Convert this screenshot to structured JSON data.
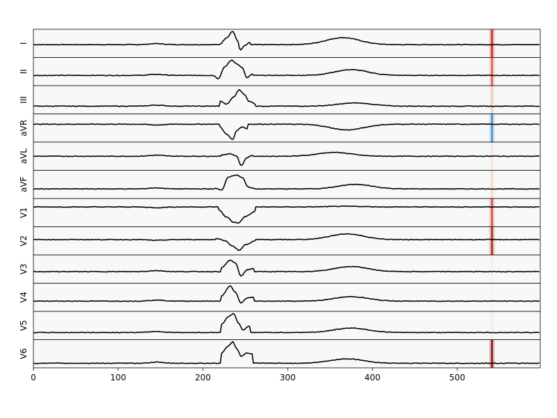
{
  "chart_data": {
    "type": "line",
    "xlim": [
      0,
      598
    ],
    "x_ticks": [
      "0",
      "100",
      "200",
      "300",
      "400",
      "500"
    ],
    "x_tick_values": [
      0,
      100,
      200,
      300,
      400,
      500
    ],
    "panel_background": "#f7f9f9",
    "line_color": "#000000",
    "leads": [
      {
        "name": "I",
        "polarity": 1,
        "qrs": [
          [
            220,
            -0.05
          ],
          [
            228,
            0.45
          ],
          [
            235,
            0.95
          ],
          [
            241,
            0.2
          ],
          [
            244,
            -0.55
          ],
          [
            249,
            -0.2
          ],
          [
            255,
            0.05
          ]
        ],
        "t_amp": 0.55,
        "t_center": 365,
        "baseline": -0.1,
        "highlight": {
          "x": 541,
          "color": "#c9301a",
          "strength": 0.9
        }
      },
      {
        "name": "II",
        "polarity": 1,
        "qrs": [
          [
            212,
            -0.3
          ],
          [
            218,
            -0.55
          ],
          [
            226,
            0.4
          ],
          [
            234,
            0.9
          ],
          [
            240,
            0.6
          ],
          [
            246,
            0.35
          ],
          [
            252,
            -0.5
          ],
          [
            258,
            -0.2
          ]
        ],
        "t_amp": 0.45,
        "t_center": 375,
        "baseline": -0.3,
        "highlight": {
          "x": 541,
          "color": "#d2402a",
          "strength": 0.7
        }
      },
      {
        "name": "III",
        "polarity": 1,
        "qrs": [
          [
            220,
            -0.1
          ],
          [
            228,
            -0.35
          ],
          [
            236,
            0.2
          ],
          [
            243,
            0.8
          ],
          [
            249,
            0.4
          ],
          [
            254,
            -0.1
          ],
          [
            262,
            -0.3
          ]
        ],
        "t_amp": 0.25,
        "t_center": 380,
        "baseline": -0.5,
        "highlight": {
          "x": 541,
          "color": "#e8805e",
          "strength": 0.3
        }
      },
      {
        "name": "aVR",
        "polarity": -1,
        "qrs": [
          [
            220,
            0.1
          ],
          [
            228,
            -0.5
          ],
          [
            235,
            -0.9
          ],
          [
            240,
            -0.2
          ],
          [
            246,
            0.1
          ],
          [
            252,
            -0.05
          ]
        ],
        "t_amp": -0.45,
        "t_center": 370,
        "baseline": 0.3,
        "highlight": {
          "x": 541,
          "color": "#3a86c8",
          "strength": 0.8
        }
      },
      {
        "name": "aVL",
        "polarity": 1,
        "qrs": [
          [
            222,
            0.1
          ],
          [
            232,
            0.2
          ],
          [
            240,
            0.0
          ],
          [
            245,
            -0.75
          ],
          [
            252,
            -0.1
          ],
          [
            258,
            0.05
          ]
        ],
        "t_amp": 0.3,
        "t_center": 355,
        "baseline": 0.0,
        "highlight": {
          "x": 541,
          "color": "#f0b090",
          "strength": 0.2
        }
      },
      {
        "name": "aVF",
        "polarity": 1,
        "qrs": [
          [
            214,
            -0.3
          ],
          [
            222,
            -0.45
          ],
          [
            230,
            0.6
          ],
          [
            240,
            0.75
          ],
          [
            247,
            0.5
          ],
          [
            253,
            -0.2
          ],
          [
            260,
            -0.3
          ]
        ],
        "t_amp": 0.35,
        "t_center": 380,
        "baseline": -0.35,
        "highlight": {
          "x": 541,
          "color": "#f0b090",
          "strength": 0.3
        }
      },
      {
        "name": "V1",
        "polarity": -1,
        "qrs": [
          [
            218,
            0.25
          ],
          [
            228,
            -0.35
          ],
          [
            236,
            -0.75
          ],
          [
            242,
            -0.8
          ],
          [
            250,
            -0.3
          ],
          [
            262,
            0.1
          ]
        ],
        "t_amp": 0.05,
        "t_center": 370,
        "baseline": 0.45,
        "highlight": {
          "x": 541,
          "color": "#d2402a",
          "strength": 0.8
        }
      },
      {
        "name": "V2",
        "polarity": -1,
        "qrs": [
          [
            215,
            0.2
          ],
          [
            225,
            0.05
          ],
          [
            235,
            -0.4
          ],
          [
            243,
            -0.75
          ],
          [
            250,
            -0.3
          ],
          [
            262,
            0.0
          ]
        ],
        "t_amp": 0.45,
        "t_center": 370,
        "baseline": 0.1,
        "highlight": {
          "x": 541,
          "color": "#b52a1f",
          "strength": 0.9
        }
      },
      {
        "name": "V3",
        "polarity": 1,
        "qrs": [
          [
            222,
            0.1
          ],
          [
            232,
            0.7
          ],
          [
            238,
            0.5
          ],
          [
            245,
            -0.55
          ],
          [
            252,
            -0.05
          ],
          [
            260,
            0.05
          ]
        ],
        "t_amp": 0.4,
        "t_center": 375,
        "baseline": -0.2,
        "highlight": {
          "x": 541,
          "color": "#f0d5c8",
          "strength": 0.2
        }
      },
      {
        "name": "V4",
        "polarity": 1,
        "qrs": [
          [
            222,
            0.1
          ],
          [
            232,
            0.9
          ],
          [
            238,
            0.4
          ],
          [
            245,
            -0.45
          ],
          [
            252,
            -0.05
          ],
          [
            260,
            0.0
          ]
        ],
        "t_amp": 0.35,
        "t_center": 375,
        "baseline": -0.3,
        "highlight": {
          "x": 541,
          "color": "#f0d5c8",
          "strength": 0.1
        }
      },
      {
        "name": "V5",
        "polarity": 1,
        "qrs": [
          [
            222,
            0.1
          ],
          [
            230,
            0.7
          ],
          [
            236,
            0.95
          ],
          [
            242,
            0.2
          ],
          [
            247,
            -0.35
          ],
          [
            255,
            -0.05
          ]
        ],
        "t_amp": 0.35,
        "t_center": 375,
        "baseline": -0.55,
        "highlight": {
          "x": 541,
          "color": "#f5c0a0",
          "strength": 0.15
        }
      },
      {
        "name": "V6",
        "polarity": 1,
        "qrs": [
          [
            222,
            0.05
          ],
          [
            230,
            0.6
          ],
          [
            235,
            0.95
          ],
          [
            240,
            0.4
          ],
          [
            245,
            -0.2
          ],
          [
            252,
            0.05
          ],
          [
            258,
            0.0
          ]
        ],
        "t_amp": 0.35,
        "t_center": 370,
        "baseline": -0.75,
        "highlight": {
          "x": 541,
          "color": "#8e1b14",
          "strength": 0.95
        }
      }
    ]
  }
}
